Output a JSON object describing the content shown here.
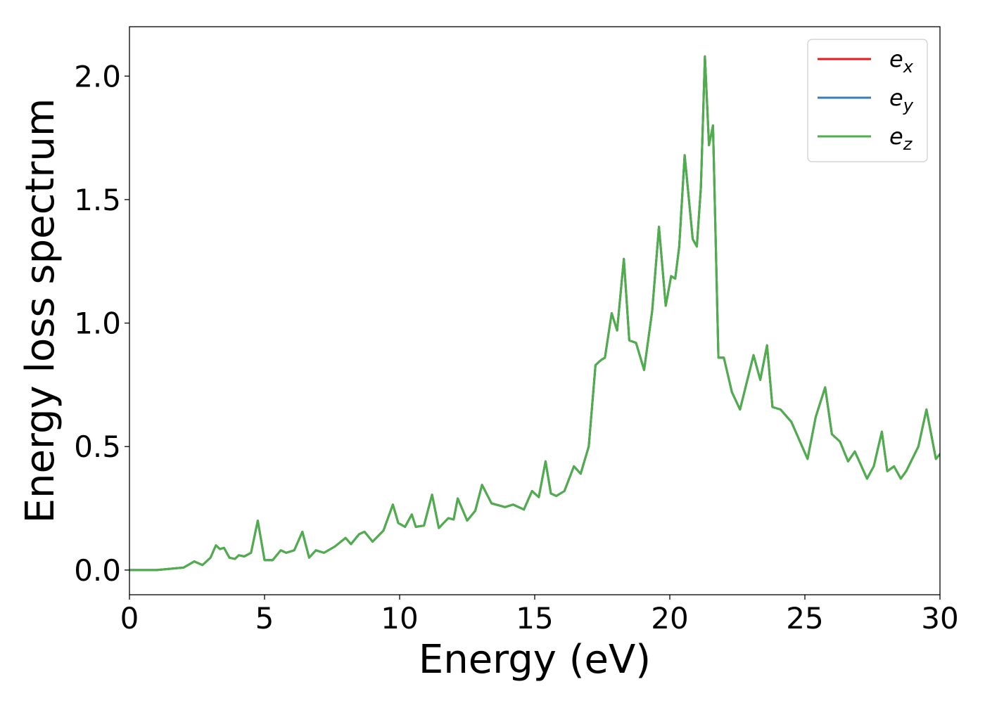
{
  "chart_data": {
    "type": "line",
    "xlabel": "Energy (eV)",
    "ylabel": "Energy loss spectrum",
    "xlim": [
      0,
      30
    ],
    "ylim": [
      -0.1,
      2.2
    ],
    "xticks": [
      "0",
      "5",
      "10",
      "15",
      "20",
      "25",
      "30"
    ],
    "yticks": [
      "0.0",
      "0.5",
      "1.0",
      "1.5",
      "2.0"
    ],
    "grid": false,
    "legend_position": "top-right",
    "colors": {
      "ex": "#e41a1c",
      "ey": "#377eb8",
      "ez": "#4daf4a"
    },
    "series": [
      {
        "name": "e",
        "subscript": "x",
        "key": "ex"
      },
      {
        "name": "e",
        "subscript": "y",
        "key": "ey"
      },
      {
        "name": "e",
        "subscript": "z",
        "key": "ez"
      }
    ],
    "x": [
      0,
      1.0,
      2.0,
      2.4,
      2.7,
      3.0,
      3.2,
      3.35,
      3.5,
      3.7,
      3.9,
      4.05,
      4.25,
      4.5,
      4.75,
      5.0,
      5.3,
      5.6,
      5.8,
      6.1,
      6.4,
      6.65,
      6.9,
      7.2,
      7.6,
      8.0,
      8.2,
      8.5,
      8.7,
      9.0,
      9.4,
      9.75,
      9.95,
      10.2,
      10.45,
      10.6,
      10.9,
      11.2,
      11.45,
      11.8,
      12.0,
      12.15,
      12.5,
      12.8,
      13.05,
      13.4,
      13.9,
      14.2,
      14.6,
      14.9,
      15.15,
      15.4,
      15.6,
      15.8,
      16.1,
      16.45,
      16.7,
      17.0,
      17.25,
      17.45,
      17.6,
      17.85,
      18.05,
      18.3,
      18.5,
      18.75,
      19.05,
      19.35,
      19.6,
      19.85,
      20.05,
      20.2,
      20.35,
      20.55,
      20.85,
      21.0,
      21.15,
      21.3,
      21.45,
      21.6,
      21.8,
      22.0,
      22.3,
      22.6,
      23.1,
      23.35,
      23.6,
      23.8,
      24.1,
      24.5,
      24.7,
      25.1,
      25.4,
      25.75,
      26.0,
      26.3,
      26.6,
      26.85,
      27.3,
      27.55,
      27.85,
      28.05,
      28.3,
      28.55,
      28.75,
      29.2,
      29.5,
      29.85,
      30.0
    ],
    "y_ez": [
      0.0,
      0.0,
      0.01,
      0.035,
      0.02,
      0.05,
      0.1,
      0.085,
      0.09,
      0.05,
      0.045,
      0.06,
      0.055,
      0.07,
      0.2,
      0.04,
      0.04,
      0.08,
      0.07,
      0.08,
      0.155,
      0.05,
      0.08,
      0.07,
      0.095,
      0.13,
      0.105,
      0.145,
      0.155,
      0.115,
      0.16,
      0.265,
      0.19,
      0.175,
      0.225,
      0.175,
      0.18,
      0.305,
      0.17,
      0.21,
      0.205,
      0.29,
      0.2,
      0.24,
      0.345,
      0.27,
      0.255,
      0.265,
      0.245,
      0.32,
      0.295,
      0.44,
      0.31,
      0.3,
      0.32,
      0.42,
      0.39,
      0.5,
      0.83,
      0.85,
      0.86,
      1.04,
      0.97,
      1.26,
      0.93,
      0.92,
      0.81,
      1.05,
      1.39,
      1.07,
      1.19,
      1.18,
      1.31,
      1.68,
      1.34,
      1.31,
      1.55,
      2.08,
      1.72,
      1.8,
      0.86,
      0.86,
      0.72,
      0.65,
      0.87,
      0.77,
      0.91,
      0.66,
      0.65,
      0.6,
      0.55,
      0.45,
      0.62,
      0.74,
      0.55,
      0.52,
      0.44,
      0.48,
      0.37,
      0.42,
      0.56,
      0.4,
      0.42,
      0.37,
      0.4,
      0.5,
      0.65,
      0.45,
      0.47
    ]
  }
}
